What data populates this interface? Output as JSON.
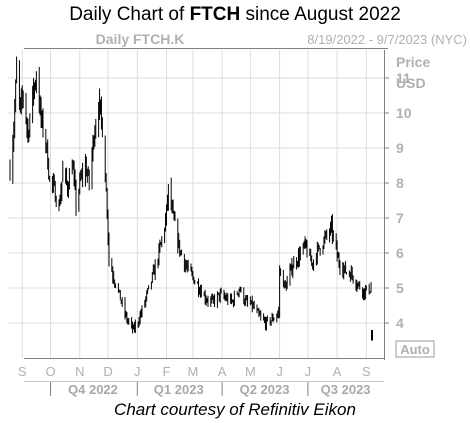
{
  "title": {
    "prefix": "Daily Chart of ",
    "ticker": "FTCH",
    "suffix": " since August 2022"
  },
  "header": {
    "instrument": "Daily FTCH.K",
    "date_range": "8/19/2022 - 9/7/2023 (NYC)"
  },
  "credit": "Chart courtesy of Refinitiv Eikon",
  "auto_button": "Auto",
  "colors": {
    "frame": "#808080",
    "grid": "#dcdcdc",
    "axis_text": "#b0b0b0",
    "candle": "#000000",
    "quarter_text": "#a8a8a8"
  },
  "chart_data": {
    "type": "candlestick",
    "title": "Daily Chart of FTCH since August 2022",
    "ylabel": "Price USD",
    "ylim": [
      3,
      11.8
    ],
    "y_ticks": [
      4,
      5,
      6,
      7,
      8,
      9,
      10,
      11
    ],
    "y_tick_labels": [
      "4",
      "5",
      "6",
      "7",
      "8",
      "9",
      "10",
      "11"
    ],
    "x_range": [
      "2022-08-19",
      "2023-09-07"
    ],
    "month_labels": [
      {
        "label": "S",
        "date": "2022-09-01"
      },
      {
        "label": "O",
        "date": "2022-10-01"
      },
      {
        "label": "N",
        "date": "2022-11-01"
      },
      {
        "label": "D",
        "date": "2022-12-01"
      },
      {
        "label": "J",
        "date": "2023-01-01"
      },
      {
        "label": "F",
        "date": "2023-02-01"
      },
      {
        "label": "M",
        "date": "2023-03-01"
      },
      {
        "label": "A",
        "date": "2023-04-01"
      },
      {
        "label": "M",
        "date": "2023-05-01"
      },
      {
        "label": "J",
        "date": "2023-06-01"
      },
      {
        "label": "J",
        "date": "2023-07-01"
      },
      {
        "label": "A",
        "date": "2023-08-01"
      },
      {
        "label": "S",
        "date": "2023-09-01"
      }
    ],
    "quarter_labels": [
      {
        "label": "Q4 2022",
        "date": "2022-11-15"
      },
      {
        "label": "Q1 2023",
        "date": "2023-02-14"
      },
      {
        "label": "Q2 2023",
        "date": "2023-05-16"
      },
      {
        "label": "Q3 2023",
        "date": "2023-08-10"
      }
    ],
    "quarter_separators": [
      "2022-10-01",
      "2023-01-01",
      "2023-04-01",
      "2023-07-01"
    ],
    "grid": true,
    "close_path": [
      [
        "2022-08-19",
        8.4
      ],
      [
        "2022-08-23",
        9.6
      ],
      [
        "2022-08-26",
        11.2
      ],
      [
        "2022-08-30",
        10.0
      ],
      [
        "2022-09-02",
        10.6
      ],
      [
        "2022-09-07",
        9.4
      ],
      [
        "2022-09-12",
        10.5
      ],
      [
        "2022-09-16",
        11.1
      ],
      [
        "2022-09-21",
        9.8
      ],
      [
        "2022-09-26",
        9.2
      ],
      [
        "2022-09-30",
        8.1
      ],
      [
        "2022-10-05",
        7.8
      ],
      [
        "2022-10-10",
        7.3
      ],
      [
        "2022-10-14",
        8.3
      ],
      [
        "2022-10-19",
        7.9
      ],
      [
        "2022-10-24",
        8.6
      ],
      [
        "2022-10-28",
        7.4
      ],
      [
        "2022-11-02",
        8.1
      ],
      [
        "2022-11-07",
        8.5
      ],
      [
        "2022-11-11",
        8.0
      ],
      [
        "2022-11-16",
        9.4
      ],
      [
        "2022-11-21",
        10.3
      ],
      [
        "2022-11-25",
        9.6
      ],
      [
        "2022-11-30",
        7.3
      ],
      [
        "2022-12-02",
        5.8
      ],
      [
        "2022-12-06",
        5.4
      ],
      [
        "2022-12-12",
        4.9
      ],
      [
        "2022-12-16",
        4.5
      ],
      [
        "2022-12-21",
        4.1
      ],
      [
        "2022-12-28",
        3.8
      ],
      [
        "2023-01-04",
        4.2
      ],
      [
        "2023-01-10",
        4.7
      ],
      [
        "2023-01-17",
        5.3
      ],
      [
        "2023-01-24",
        6.0
      ],
      [
        "2023-01-31",
        6.9
      ],
      [
        "2023-02-03",
        7.8
      ],
      [
        "2023-02-08",
        7.0
      ],
      [
        "2023-02-15",
        6.1
      ],
      [
        "2023-02-22",
        5.6
      ],
      [
        "2023-03-01",
        5.3
      ],
      [
        "2023-03-08",
        5.0
      ],
      [
        "2023-03-15",
        4.7
      ],
      [
        "2023-03-22",
        4.6
      ],
      [
        "2023-03-29",
        4.8
      ],
      [
        "2023-04-05",
        4.7
      ],
      [
        "2023-04-12",
        4.6
      ],
      [
        "2023-04-19",
        5.0
      ],
      [
        "2023-04-26",
        4.6
      ],
      [
        "2023-05-03",
        4.5
      ],
      [
        "2023-05-10",
        4.2
      ],
      [
        "2023-05-17",
        4.0
      ],
      [
        "2023-05-24",
        4.1
      ],
      [
        "2023-05-31",
        4.3
      ],
      [
        "2023-06-01",
        5.5
      ],
      [
        "2023-06-07",
        5.0
      ],
      [
        "2023-06-14",
        5.6
      ],
      [
        "2023-06-21",
        5.9
      ],
      [
        "2023-06-28",
        6.2
      ],
      [
        "2023-07-05",
        5.7
      ],
      [
        "2023-07-12",
        6.1
      ],
      [
        "2023-07-19",
        6.4
      ],
      [
        "2023-07-26",
        6.7
      ],
      [
        "2023-08-02",
        5.8
      ],
      [
        "2023-08-09",
        5.5
      ],
      [
        "2023-08-16",
        5.4
      ],
      [
        "2023-08-23",
        5.1
      ],
      [
        "2023-08-30",
        4.9
      ],
      [
        "2023-09-06",
        5.0
      ]
    ],
    "gap_candle": {
      "date": "2023-09-07",
      "high": 3.8,
      "low": 3.5
    }
  }
}
